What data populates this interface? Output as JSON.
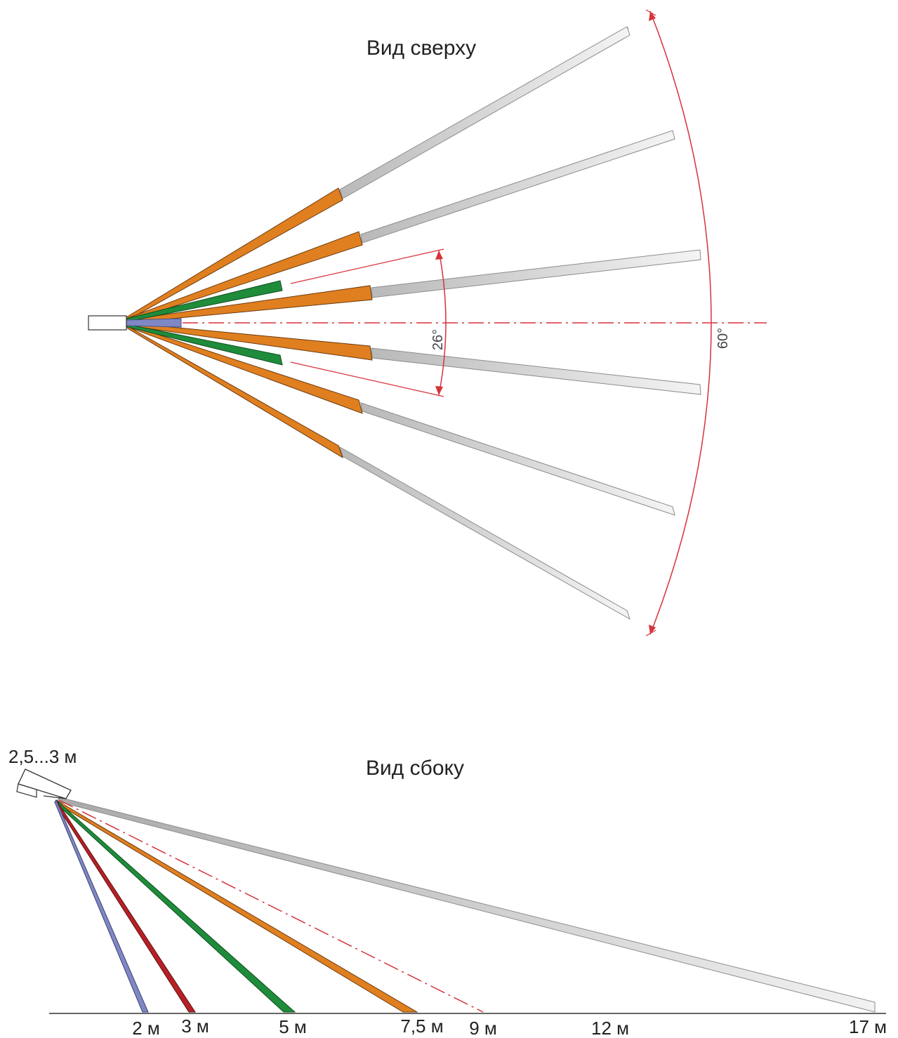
{
  "top_view": {
    "title": "Вид сверху",
    "inner_angle": "26°",
    "outer_angle": "60°"
  },
  "side_view": {
    "title": "Вид сбоку",
    "mount_height": "2,5...3 м",
    "distances": [
      "2 м",
      "3 м",
      "5 м",
      "7,5 м",
      "9 м",
      "12 м",
      "17 м"
    ]
  },
  "zone_colors": {
    "2 м": "#7f88c4",
    "3 м": "#b72025",
    "5 м": "#1e8c3a",
    "7,5 м": "#e07f1f",
    "17 м": "#c8c8c8",
    "guide": "#d6323a"
  }
}
